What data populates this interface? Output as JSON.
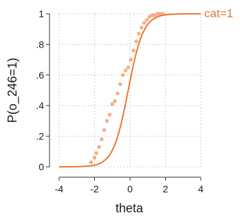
{
  "chart_data": {
    "type": "scatter",
    "xlabel": "theta",
    "ylabel": "P(o_246=1)",
    "xlim": [
      -4,
      4
    ],
    "ylim": [
      0,
      1
    ],
    "x_ticks": [
      -4,
      -2,
      0,
      2,
      4
    ],
    "x_tick_labels": [
      "-4",
      "-2",
      "0",
      "2",
      "4"
    ],
    "y_ticks": [
      0,
      0.2,
      0.4,
      0.6,
      0.8,
      1
    ],
    "y_tick_labels": [
      "0",
      ".2",
      ".4",
      ".6",
      ".8",
      "1"
    ],
    "grid": true,
    "colors": {
      "line": "#e8772e",
      "points": "#f4a77a",
      "grid": "#b0b0b0",
      "axis": "#333333"
    },
    "series": [
      {
        "name": "cat=1",
        "kind": "fitted-curve",
        "discrimination": 2.35,
        "difficulty": -0.1,
        "x_range": [
          -4,
          4
        ]
      },
      {
        "kind": "observed-points",
        "x": [
          -2.2,
          -2.0,
          -1.9,
          -1.75,
          -1.6,
          -1.45,
          -1.3,
          -1.15,
          -1.0,
          -0.85,
          -0.7,
          -0.55,
          -0.4,
          -0.25,
          -0.1,
          0.05,
          0.2,
          0.35,
          0.5,
          0.65,
          0.8,
          0.95,
          1.1,
          1.25,
          1.4,
          1.55,
          1.7,
          1.85
        ],
        "y": [
          0.03,
          0.06,
          0.09,
          0.13,
          0.18,
          0.24,
          0.3,
          0.34,
          0.41,
          0.43,
          0.48,
          0.54,
          0.6,
          0.63,
          0.65,
          0.7,
          0.76,
          0.82,
          0.87,
          0.91,
          0.94,
          0.96,
          0.98,
          0.99,
          0.99,
          1.0,
          1.0,
          1.0
        ]
      }
    ]
  }
}
